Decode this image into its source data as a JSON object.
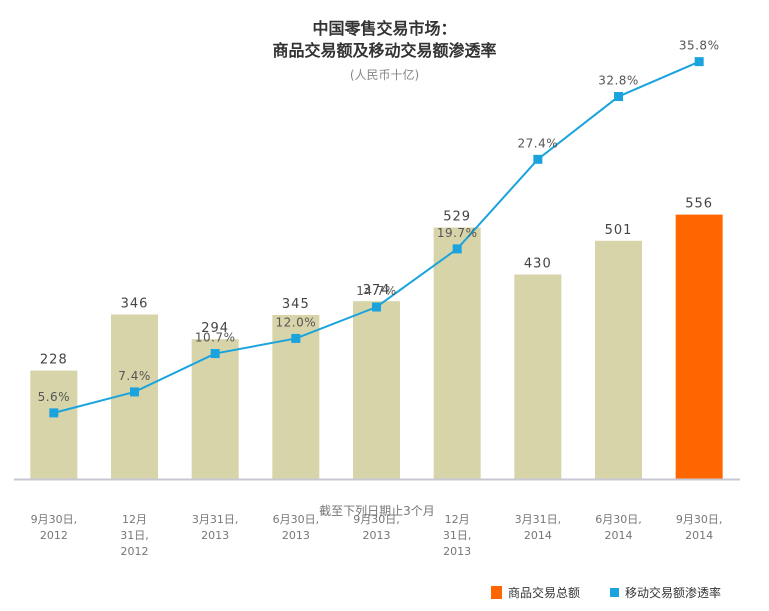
{
  "chart_data": {
    "type": "bar",
    "title_line1": "中国零售交易市场：",
    "title_line2": "商品交易额及移动交易额渗透率",
    "unit": "(人民币十亿)",
    "x_axis_note": "截至下列日期止3个月",
    "categories": [
      [
        "9月30日,",
        "2012"
      ],
      [
        "12月",
        "31日,",
        "2012"
      ],
      [
        "3月31日,",
        "2013"
      ],
      [
        "6月30日,",
        "2013"
      ],
      [
        "9月30日,",
        "2013"
      ],
      [
        "12月",
        "31日,",
        "2013"
      ],
      [
        "3月31日,",
        "2014"
      ],
      [
        "6月30日,",
        "2014"
      ],
      [
        "9月30日,",
        "2014"
      ]
    ],
    "series": [
      {
        "name": "商品交易总额",
        "type": "bar",
        "values": [
          228,
          346,
          294,
          345,
          374,
          529,
          430,
          501,
          556
        ],
        "labels": [
          "228",
          "346",
          "294",
          "345",
          "374",
          "529",
          "430",
          "501",
          "556"
        ],
        "color": "#d8d4aa",
        "highlight_last_color": "#ff6600"
      },
      {
        "name": "移动交易额渗透率",
        "type": "line",
        "values": [
          5.6,
          7.4,
          10.7,
          12.0,
          14.7,
          19.7,
          27.4,
          32.8,
          35.8
        ],
        "labels": [
          "5.6%",
          "7.4%",
          "10.7%",
          "12.0%",
          "14.7%",
          "19.7%",
          "27.4%",
          "32.8%",
          "35.8%"
        ],
        "color": "#1aa3dd"
      }
    ],
    "legend": {
      "position": "bottom-right",
      "items": [
        {
          "label": "商品交易总额",
          "color": "#ff6600",
          "shape": "square"
        },
        {
          "label": "移动交易额渗透率",
          "color": "#1aa3dd",
          "shape": "line-square"
        }
      ]
    }
  }
}
